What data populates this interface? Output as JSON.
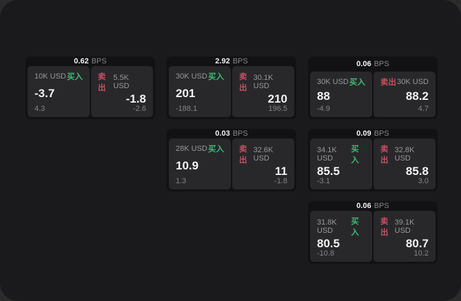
{
  "theme": {
    "backdrop": "#2b2b2b",
    "window_bg": "#1a1a1c",
    "card_bg": "#121214",
    "panel_bg": "#28282a",
    "text_primary": "#f2f2f2",
    "text_muted": "#98989b",
    "text_dim": "#86868a",
    "buy_color": "#3cba72",
    "sell_color": "#c94e61"
  },
  "labels": {
    "bps_suffix": "BPS",
    "buy": "买入",
    "sell": "卖出"
  },
  "cards": [
    {
      "row": 1,
      "col": 1,
      "bps": "0.62",
      "buy": {
        "size": "10K USD",
        "price": "-3.7",
        "delta": "4.3"
      },
      "sell": {
        "size": "5.5K USD",
        "price": "-1.8",
        "delta": "-2.6"
      }
    },
    {
      "row": 1,
      "col": 2,
      "bps": "2.92",
      "buy": {
        "size": "30K USD",
        "price": "201",
        "delta": "-188.1"
      },
      "sell": {
        "size": "30.1K USD",
        "price": "210",
        "delta": "196.5"
      }
    },
    {
      "row": 1,
      "col": 3,
      "bps": "0.06",
      "buy": {
        "size": "30K USD",
        "price": "88",
        "delta": "-4.9"
      },
      "sell": {
        "size": "30K USD",
        "price": "88.2",
        "delta": "4.7"
      }
    },
    {
      "row": 2,
      "col": 2,
      "bps": "0.03",
      "buy": {
        "size": "28K USD",
        "price": "10.9",
        "delta": "1.3"
      },
      "sell": {
        "size": "32.6K USD",
        "price": "11",
        "delta": "-1.8"
      }
    },
    {
      "row": 2,
      "col": 3,
      "bps": "0.09",
      "buy": {
        "size": "34.1K USD",
        "price": "85.5",
        "delta": "-3.1"
      },
      "sell": {
        "size": "32.8K USD",
        "price": "85.8",
        "delta": "3.0"
      }
    },
    {
      "row": 3,
      "col": 3,
      "bps": "0.06",
      "buy": {
        "size": "31.8K USD",
        "price": "80.5",
        "delta": "-10.8"
      },
      "sell": {
        "size": "39.1K USD",
        "price": "80.7",
        "delta": "10.2"
      }
    }
  ]
}
